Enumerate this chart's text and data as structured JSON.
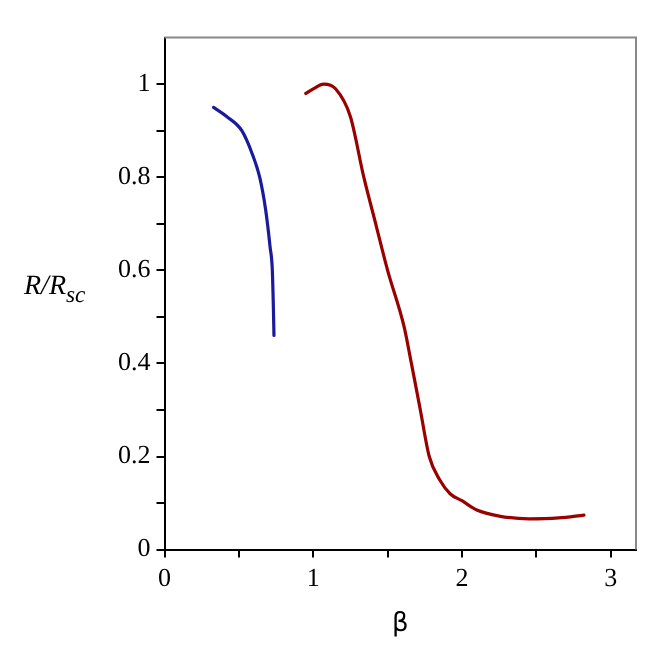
{
  "chart_data": {
    "type": "line",
    "xlabel": "β",
    "ylabel": "R/R$_{sc}$",
    "xlim": [
      0,
      3.17
    ],
    "ylim": [
      0,
      1.1
    ],
    "xticks": [
      0,
      {
        "value": 0.5,
        "label": null
      },
      1,
      {
        "value": 1.5,
        "label": null
      },
      2,
      {
        "value": 2.5,
        "label": null
      },
      3
    ],
    "yticks": [
      0,
      {
        "value": 0.1,
        "label": null
      },
      0.2,
      {
        "value": 0.3,
        "label": null
      },
      0.4,
      {
        "value": 0.5,
        "label": null
      },
      0.6,
      {
        "value": 0.7,
        "label": null
      },
      0.8,
      {
        "value": 0.9,
        "label": null
      },
      1
    ],
    "grid": false,
    "legend": false,
    "marker": "none",
    "line_style": "solid",
    "series": [
      {
        "color": "#1a1a9c",
        "x": [
          0.33,
          0.42,
          0.52,
          0.59,
          0.64,
          0.68,
          0.71,
          0.725,
          0.732,
          0.736
        ],
        "values": [
          0.95,
          0.93,
          0.9,
          0.85,
          0.8,
          0.73,
          0.65,
          0.6,
          0.52,
          0.46
        ]
      },
      {
        "color": "#990000",
        "x": [
          0.95,
          1.0,
          1.07,
          1.15,
          1.25,
          1.34,
          1.42,
          1.5,
          1.61,
          1.66,
          1.72,
          1.78,
          1.85,
          1.92,
          2.0,
          2.1,
          2.25,
          2.45,
          2.65,
          2.82
        ],
        "values": [
          0.98,
          0.99,
          1.0,
          0.99,
          0.93,
          0.8,
          0.7,
          0.6,
          0.48,
          0.4,
          0.3,
          0.2,
          0.15,
          0.12,
          0.105,
          0.085,
          0.072,
          0.066,
          0.068,
          0.074
        ]
      }
    ]
  }
}
